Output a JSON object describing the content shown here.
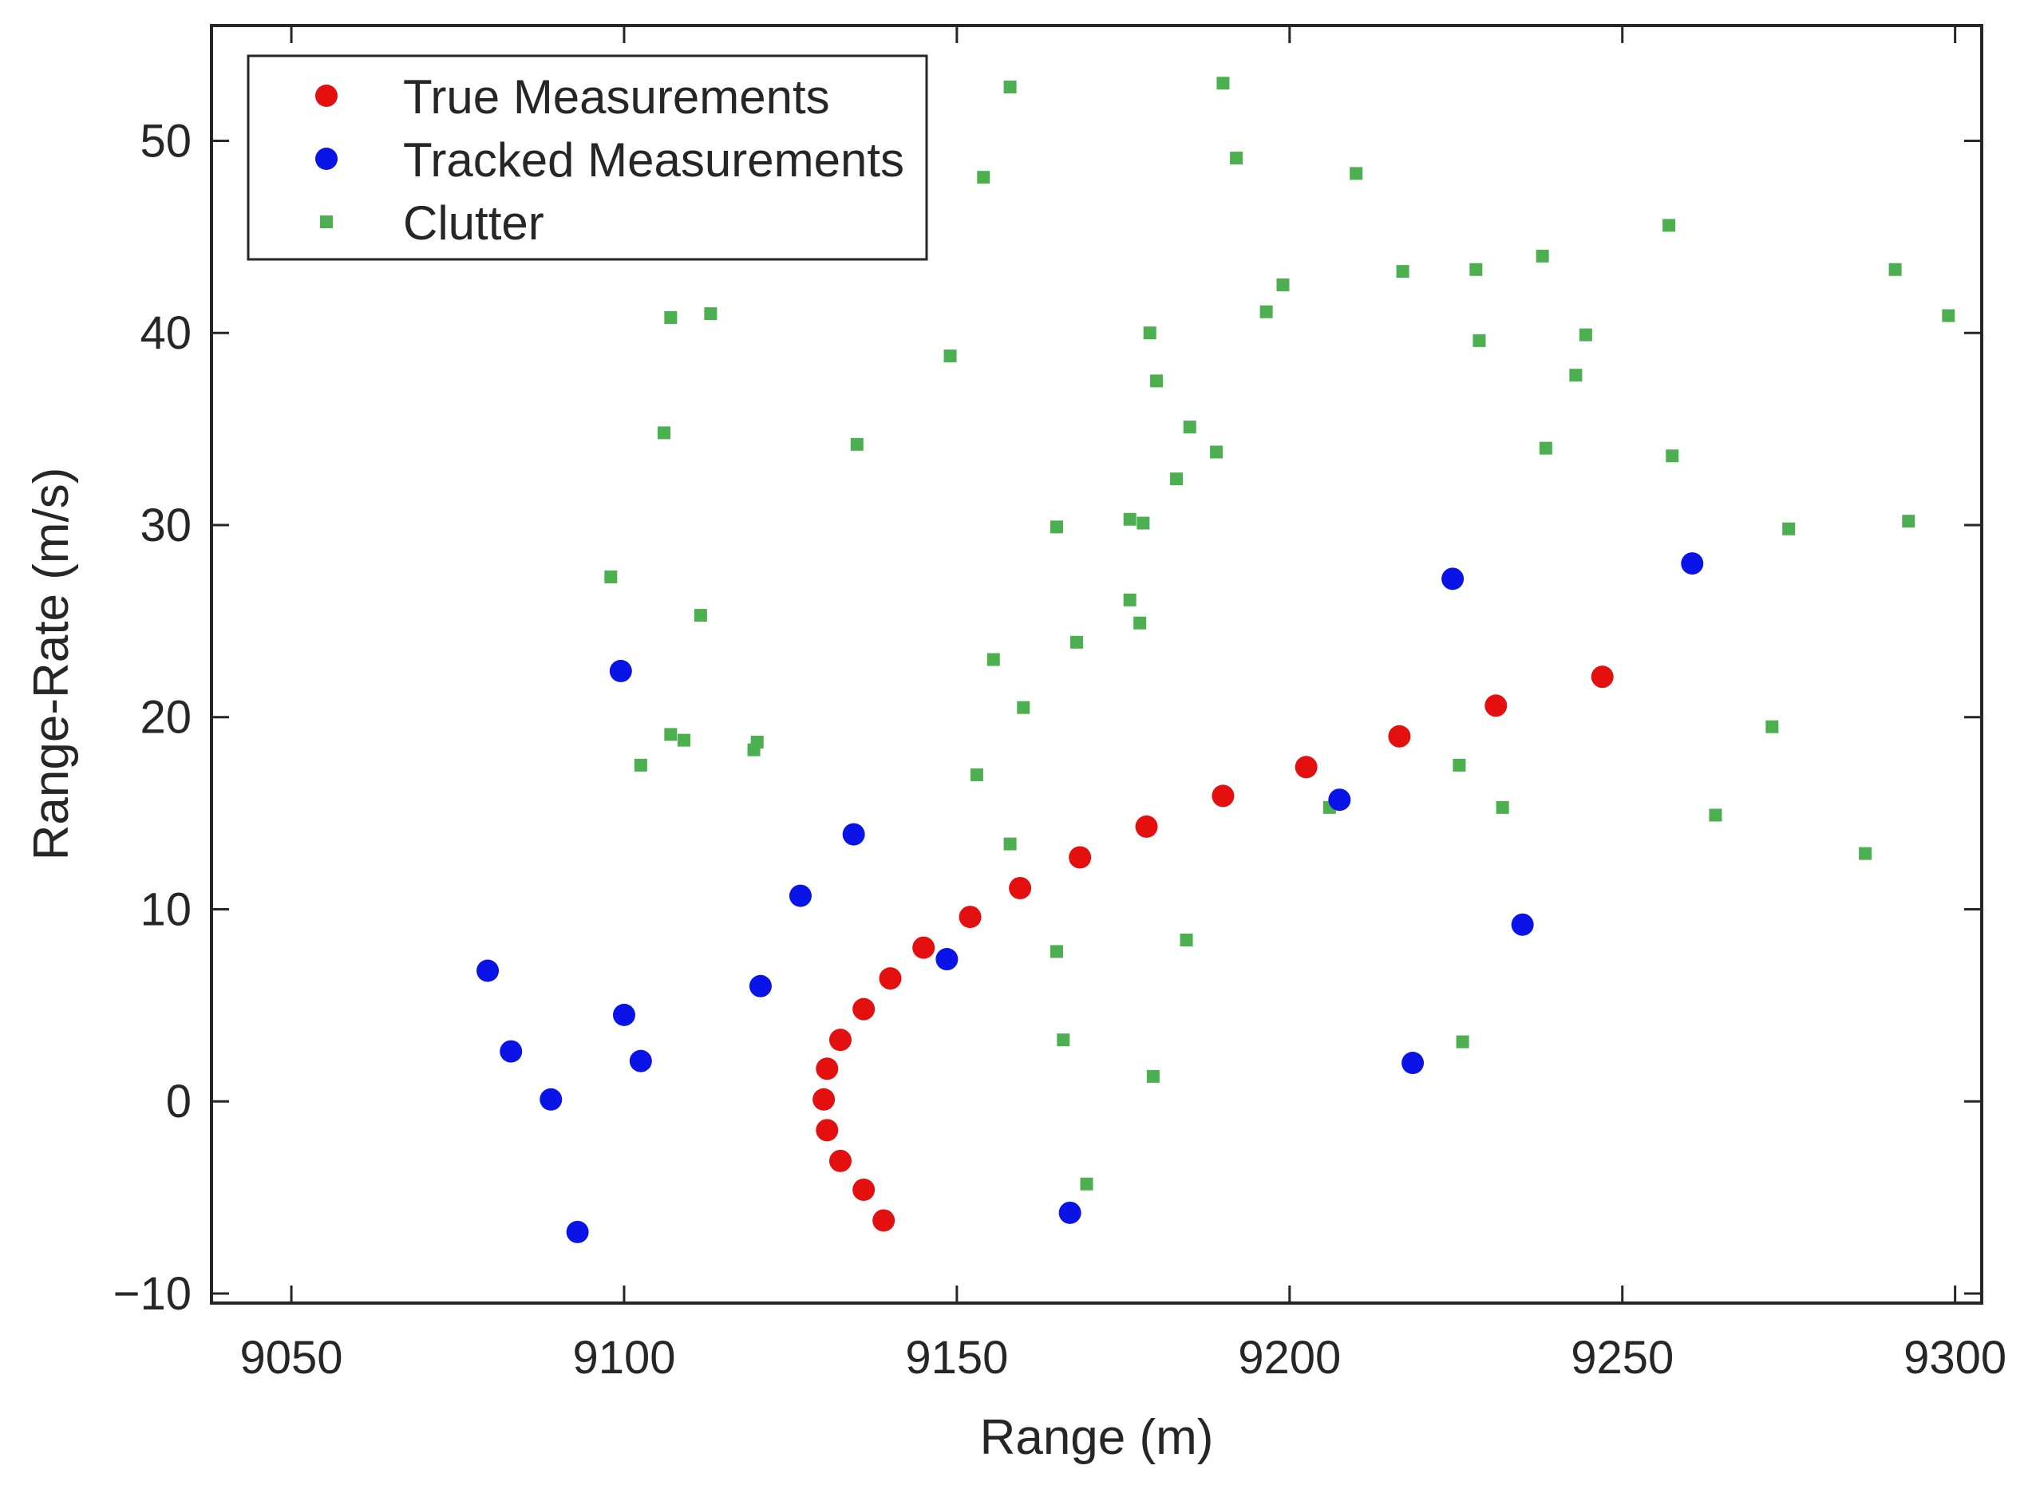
{
  "chart_data": {
    "type": "scatter",
    "xlabel": "Range (m)",
    "ylabel": "Range-Rate (m/s)",
    "xlim": [
      9038,
      9304
    ],
    "ylim": [
      -10.5,
      56
    ],
    "xticks": [
      9050,
      9100,
      9150,
      9200,
      9250,
      9300
    ],
    "yticks": [
      -10,
      0,
      10,
      20,
      30,
      40,
      50
    ],
    "xtick_labels": [
      "9050",
      "9100",
      "9150",
      "9200",
      "9250",
      "9300"
    ],
    "ytick_labels": [
      "−10",
      "0",
      "10",
      "20",
      "30",
      "40",
      "50"
    ],
    "grid": false,
    "legend_position": "top-left",
    "series": [
      {
        "name": "True Measurements",
        "marker": "circle",
        "color": "#e41010",
        "points": [
          [
            9139,
            -6.2
          ],
          [
            9136,
            -4.6
          ],
          [
            9132.5,
            -3.1
          ],
          [
            9130.5,
            -1.5
          ],
          [
            9130,
            0.1
          ],
          [
            9130.5,
            1.7
          ],
          [
            9132.5,
            3.2
          ],
          [
            9136,
            4.8
          ],
          [
            9140,
            6.4
          ],
          [
            9145,
            8
          ],
          [
            9152,
            9.6
          ],
          [
            9159.5,
            11.1
          ],
          [
            9168.5,
            12.7
          ],
          [
            9178.5,
            14.3
          ],
          [
            9190,
            15.9
          ],
          [
            9202.5,
            17.4
          ],
          [
            9216.5,
            19
          ],
          [
            9231,
            20.6
          ],
          [
            9247,
            22.1
          ]
        ]
      },
      {
        "name": "Tracked Measurements",
        "marker": "circle",
        "color": "#0a14e6",
        "points": [
          [
            9093,
            -6.8
          ],
          [
            9167,
            -5.8
          ],
          [
            9089,
            0.1
          ],
          [
            9083,
            2.6
          ],
          [
            9102.5,
            2.1
          ],
          [
            9218.5,
            2
          ],
          [
            9100,
            4.5
          ],
          [
            9120.5,
            6
          ],
          [
            9079.5,
            6.8
          ],
          [
            9148.5,
            7.4
          ],
          [
            9235,
            9.2
          ],
          [
            9126.5,
            10.7
          ],
          [
            9134.5,
            13.9
          ],
          [
            9207.5,
            15.7
          ],
          [
            9099.5,
            22.4
          ],
          [
            9224.5,
            27.2
          ],
          [
            9260.5,
            28
          ]
        ]
      },
      {
        "name": "Clutter",
        "marker": "square",
        "color": "#4caf50",
        "points": [
          [
            9158,
            52.8
          ],
          [
            9190,
            53
          ],
          [
            9154,
            48.1
          ],
          [
            9192,
            49.1
          ],
          [
            9210,
            48.3
          ],
          [
            9257,
            45.6
          ],
          [
            9291,
            43.3
          ],
          [
            9217,
            43.2
          ],
          [
            9228,
            43.3
          ],
          [
            9238,
            44
          ],
          [
            9199,
            42.5
          ],
          [
            9196.5,
            41.1
          ],
          [
            9107,
            40.8
          ],
          [
            9113,
            41
          ],
          [
            9299,
            40.9
          ],
          [
            9179,
            40
          ],
          [
            9149,
            38.8
          ],
          [
            9228.5,
            39.6
          ],
          [
            9244.5,
            39.9
          ],
          [
            9243,
            37.8
          ],
          [
            9180,
            37.5
          ],
          [
            9106,
            34.8
          ],
          [
            9135,
            34.2
          ],
          [
            9185,
            35.1
          ],
          [
            9238.5,
            34
          ],
          [
            9189,
            33.8
          ],
          [
            9257.5,
            33.6
          ],
          [
            9183,
            32.4
          ],
          [
            9165,
            29.9
          ],
          [
            9176,
            30.3
          ],
          [
            9178,
            30.1
          ],
          [
            9275,
            29.8
          ],
          [
            9293,
            30.2
          ],
          [
            9098,
            27.3
          ],
          [
            9176,
            26.1
          ],
          [
            9111.5,
            25.3
          ],
          [
            9177.5,
            24.9
          ],
          [
            9168,
            23.9
          ],
          [
            9155.5,
            23
          ],
          [
            9160,
            20.5
          ],
          [
            9107,
            19.1
          ],
          [
            9109,
            18.8
          ],
          [
            9120,
            18.7
          ],
          [
            9119.5,
            18.3
          ],
          [
            9272.5,
            19.5
          ],
          [
            9102.5,
            17.5
          ],
          [
            9153,
            17
          ],
          [
            9225.5,
            17.5
          ],
          [
            9206,
            15.3
          ],
          [
            9232,
            15.3
          ],
          [
            9264,
            14.9
          ],
          [
            9158,
            13.4
          ],
          [
            9286.5,
            12.9
          ],
          [
            9184.5,
            8.4
          ],
          [
            9165,
            7.8
          ],
          [
            9166,
            3.2
          ],
          [
            9226,
            3.1
          ],
          [
            9179.5,
            1.3
          ],
          [
            9169.5,
            -4.3
          ]
        ]
      }
    ]
  }
}
